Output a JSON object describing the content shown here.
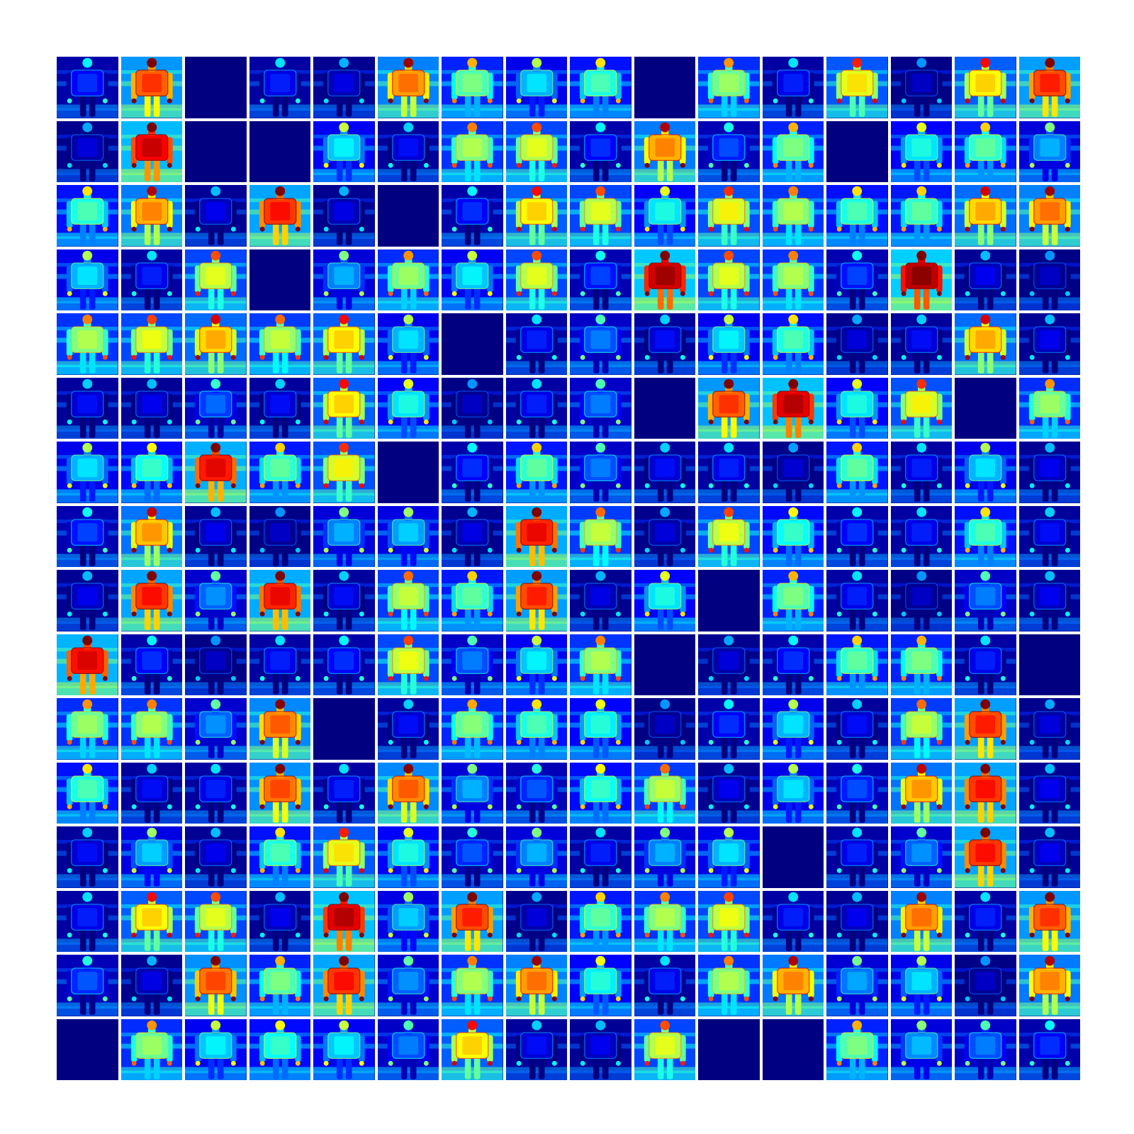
{
  "figure": {
    "rows": 16,
    "columns": 16,
    "colormap": "jet",
    "colors": {
      "background": "#ffffff",
      "jet_low": "#00007f",
      "jet_mid": "#7fff7f",
      "jet_high": "#7f0000"
    }
  },
  "tiles_level": [
    [
      0.12,
      0.78,
      0.0,
      0.1,
      0.05,
      0.72,
      0.45,
      0.3,
      0.4,
      0.0,
      0.48,
      0.1,
      0.6,
      0.02,
      0.62,
      0.8
    ],
    [
      0.04,
      0.88,
      0.0,
      0.0,
      0.32,
      0.08,
      0.5,
      0.55,
      0.12,
      0.7,
      0.15,
      0.45,
      0.0,
      0.35,
      0.42,
      0.25
    ],
    [
      0.4,
      0.7,
      0.06,
      0.82,
      0.05,
      0.0,
      0.12,
      0.62,
      0.55,
      0.35,
      0.58,
      0.5,
      0.4,
      0.42,
      0.66,
      0.72
    ],
    [
      0.3,
      0.1,
      0.55,
      0.0,
      0.25,
      0.48,
      0.32,
      0.55,
      0.14,
      0.92,
      0.55,
      0.5,
      0.14,
      0.94,
      0.06,
      0.02
    ],
    [
      0.5,
      0.56,
      0.66,
      0.52,
      0.62,
      0.3,
      0.0,
      0.1,
      0.2,
      0.08,
      0.32,
      0.4,
      0.04,
      0.08,
      0.66,
      0.06
    ],
    [
      0.08,
      0.06,
      0.18,
      0.08,
      0.62,
      0.35,
      0.02,
      0.1,
      0.2,
      0.0,
      0.78,
      0.9,
      0.35,
      0.58,
      0.0,
      0.48
    ],
    [
      0.3,
      0.38,
      0.85,
      0.42,
      0.58,
      0.0,
      0.12,
      0.42,
      0.2,
      0.08,
      0.1,
      0.03,
      0.42,
      0.1,
      0.3,
      0.06
    ],
    [
      0.14,
      0.68,
      0.06,
      0.02,
      0.25,
      0.28,
      0.05,
      0.84,
      0.52,
      0.04,
      0.56,
      0.38,
      0.12,
      0.1,
      0.4,
      0.08
    ],
    [
      0.06,
      0.82,
      0.22,
      0.84,
      0.08,
      0.52,
      0.42,
      0.8,
      0.05,
      0.35,
      0.0,
      0.45,
      0.1,
      0.02,
      0.2,
      0.06
    ],
    [
      0.86,
      0.12,
      0.02,
      0.1,
      0.12,
      0.56,
      0.2,
      0.32,
      0.5,
      0.0,
      0.04,
      0.12,
      0.42,
      0.45,
      0.1,
      0.0
    ],
    [
      0.48,
      0.5,
      0.22,
      0.74,
      0.0,
      0.08,
      0.46,
      0.4,
      0.36,
      0.02,
      0.12,
      0.3,
      0.08,
      0.52,
      0.8,
      0.04
    ],
    [
      0.4,
      0.08,
      0.1,
      0.76,
      0.1,
      0.74,
      0.25,
      0.16,
      0.38,
      0.52,
      0.06,
      0.3,
      0.15,
      0.68,
      0.82,
      0.06
    ],
    [
      0.08,
      0.28,
      0.06,
      0.4,
      0.6,
      0.35,
      0.16,
      0.25,
      0.1,
      0.25,
      0.3,
      0.0,
      0.1,
      0.22,
      0.82,
      0.06
    ],
    [
      0.1,
      0.62,
      0.55,
      0.06,
      0.9,
      0.28,
      0.8,
      0.04,
      0.42,
      0.5,
      0.56,
      0.1,
      0.06,
      0.72,
      0.1,
      0.78
    ],
    [
      0.16,
      0.05,
      0.76,
      0.45,
      0.82,
      0.22,
      0.5,
      0.72,
      0.36,
      0.1,
      0.5,
      0.7,
      0.24,
      0.3,
      0.02,
      0.7
    ],
    [
      0.0,
      0.48,
      0.32,
      0.38,
      0.32,
      0.2,
      0.62,
      0.08,
      0.06,
      0.55,
      0.0,
      0.01,
      0.45,
      0.26,
      0.2,
      0.12
    ]
  ]
}
